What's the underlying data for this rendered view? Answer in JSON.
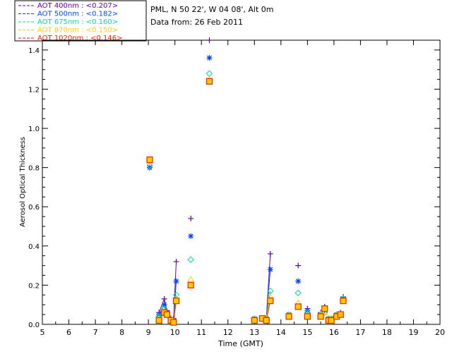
{
  "chart_data": {
    "type": "scatter",
    "title_lines": [
      "PML, N 50 22', W 04 08', Alt 0m",
      "Data from: 26 Feb 2011"
    ],
    "xlabel": "Time (GMT)",
    "ylabel": "Aerosol Optical Thickness",
    "xlim": [
      5,
      20
    ],
    "ylim": [
      0,
      1.45
    ],
    "xticks": [
      5,
      6,
      7,
      8,
      9,
      10,
      11,
      12,
      13,
      14,
      15,
      16,
      17,
      18,
      19,
      20
    ],
    "yticks": [
      0.0,
      0.2,
      0.4,
      0.6,
      0.8,
      1.0,
      1.2,
      1.4
    ],
    "ytick_labels": [
      "0.0",
      "0.2",
      "0.4",
      "0.6",
      "0.8",
      "1.0",
      "1.2",
      "1.4"
    ],
    "grid": false,
    "legend_position": "top-left outside",
    "series": [
      {
        "name": "AOT  400nm",
        "mean_label": ": <0.207>",
        "color": "#660099",
        "marker": "plus",
        "points": [
          [
            9.05,
            0.8
          ],
          [
            9.4,
            0.06
          ],
          [
            9.6,
            0.13
          ],
          [
            9.7,
            0.07
          ],
          [
            9.85,
            0.03
          ],
          [
            9.95,
            0.03
          ],
          [
            10.05,
            0.32
          ],
          [
            10.6,
            0.54
          ],
          [
            11.3,
            1.45
          ],
          [
            13.0,
            0.03
          ],
          [
            13.3,
            0.03
          ],
          [
            13.45,
            0.03
          ],
          [
            13.6,
            0.36
          ],
          [
            14.3,
            0.05
          ],
          [
            14.65,
            0.3
          ],
          [
            15.0,
            0.08
          ],
          [
            15.5,
            0.06
          ],
          [
            15.65,
            0.09
          ],
          [
            15.8,
            0.03
          ],
          [
            15.9,
            0.03
          ],
          [
            16.1,
            0.05
          ],
          [
            16.25,
            0.06
          ],
          [
            16.35,
            0.14
          ]
        ],
        "connected_runs": [
          [
            9.4,
            9.6,
            9.7,
            9.85,
            9.95,
            10.05
          ],
          [
            13.3,
            13.45,
            13.6
          ]
        ]
      },
      {
        "name": "AOT  500nm",
        "mean_label": ": <0.182>",
        "color": "#0044ff",
        "marker": "asterisk",
        "points": [
          [
            9.05,
            0.8
          ],
          [
            9.4,
            0.05
          ],
          [
            9.6,
            0.1
          ],
          [
            9.7,
            0.06
          ],
          [
            9.85,
            0.02
          ],
          [
            9.95,
            0.02
          ],
          [
            10.05,
            0.22
          ],
          [
            10.6,
            0.45
          ],
          [
            11.3,
            1.36
          ],
          [
            13.0,
            0.03
          ],
          [
            13.3,
            0.03
          ],
          [
            13.45,
            0.03
          ],
          [
            13.6,
            0.28
          ],
          [
            14.3,
            0.05
          ],
          [
            14.65,
            0.22
          ],
          [
            15.0,
            0.07
          ],
          [
            15.5,
            0.05
          ],
          [
            15.65,
            0.07
          ],
          [
            15.8,
            0.03
          ],
          [
            15.9,
            0.03
          ],
          [
            16.1,
            0.05
          ],
          [
            16.25,
            0.05
          ],
          [
            16.35,
            0.13
          ]
        ],
        "connected_runs": [
          [
            9.4,
            9.6,
            9.7,
            9.85,
            9.95,
            10.05
          ],
          [
            13.3,
            13.45,
            13.6
          ]
        ]
      },
      {
        "name": "AOT  675nm",
        "mean_label": ": <0.160>",
        "color": "#00dd99",
        "marker": "diamond",
        "points": [
          [
            9.05,
            0.81
          ],
          [
            9.4,
            0.04
          ],
          [
            9.6,
            0.08
          ],
          [
            9.7,
            0.05
          ],
          [
            9.85,
            0.02
          ],
          [
            9.95,
            0.02
          ],
          [
            10.05,
            0.15
          ],
          [
            10.6,
            0.33
          ],
          [
            11.3,
            1.28
          ],
          [
            13.0,
            0.03
          ],
          [
            13.3,
            0.03
          ],
          [
            13.45,
            0.03
          ],
          [
            13.6,
            0.17
          ],
          [
            14.3,
            0.05
          ],
          [
            14.65,
            0.16
          ],
          [
            15.0,
            0.06
          ],
          [
            15.5,
            0.05
          ],
          [
            15.65,
            0.06
          ],
          [
            15.8,
            0.03
          ],
          [
            15.9,
            0.03
          ],
          [
            16.1,
            0.05
          ],
          [
            16.25,
            0.05
          ],
          [
            16.35,
            0.13
          ]
        ],
        "connected_runs": [
          [
            9.4,
            9.6,
            9.7,
            9.85,
            9.95,
            10.05
          ],
          [
            13.3,
            13.45,
            13.6
          ]
        ]
      },
      {
        "name": "AOT  870nm",
        "mean_label": ": <0.150>",
        "color": "#ffcc00",
        "marker": "triangle",
        "points": [
          [
            9.05,
            0.83
          ],
          [
            9.4,
            0.03
          ],
          [
            9.6,
            0.07
          ],
          [
            9.7,
            0.05
          ],
          [
            9.85,
            0.02
          ],
          [
            9.95,
            0.02
          ],
          [
            10.05,
            0.13
          ],
          [
            10.6,
            0.23
          ],
          [
            11.3,
            1.25
          ],
          [
            13.0,
            0.03
          ],
          [
            13.3,
            0.03
          ],
          [
            13.45,
            0.03
          ],
          [
            13.6,
            0.14
          ],
          [
            14.3,
            0.05
          ],
          [
            14.65,
            0.11
          ],
          [
            15.0,
            0.05
          ],
          [
            15.5,
            0.05
          ],
          [
            15.65,
            0.06
          ],
          [
            15.8,
            0.03
          ],
          [
            15.9,
            0.03
          ],
          [
            16.1,
            0.05
          ],
          [
            16.25,
            0.05
          ],
          [
            16.35,
            0.12
          ]
        ],
        "connected_runs": [
          [
            9.4,
            9.6,
            9.7,
            9.85,
            9.95,
            10.05
          ],
          [
            13.3,
            13.45,
            13.6
          ]
        ]
      },
      {
        "name": "AOT 1020nm",
        "mean_label": ": <0.146>",
        "color": "#ee2200",
        "marker": "square",
        "points": [
          [
            9.05,
            0.84
          ],
          [
            9.4,
            0.02
          ],
          [
            9.6,
            0.06
          ],
          [
            9.7,
            0.05
          ],
          [
            9.85,
            0.02
          ],
          [
            9.95,
            0.01
          ],
          [
            10.05,
            0.12
          ],
          [
            10.6,
            0.2
          ],
          [
            11.3,
            1.24
          ],
          [
            13.0,
            0.02
          ],
          [
            13.3,
            0.03
          ],
          [
            13.45,
            0.02
          ],
          [
            13.6,
            0.12
          ],
          [
            14.3,
            0.04
          ],
          [
            14.65,
            0.09
          ],
          [
            15.0,
            0.04
          ],
          [
            15.5,
            0.04
          ],
          [
            15.65,
            0.08
          ],
          [
            15.8,
            0.02
          ],
          [
            15.9,
            0.02
          ],
          [
            16.1,
            0.04
          ],
          [
            16.25,
            0.05
          ],
          [
            16.35,
            0.12
          ]
        ],
        "connected_runs": [
          [
            9.4,
            9.6,
            9.7,
            9.85,
            9.95,
            10.05
          ],
          [
            13.3,
            13.45,
            13.6
          ]
        ]
      }
    ]
  }
}
